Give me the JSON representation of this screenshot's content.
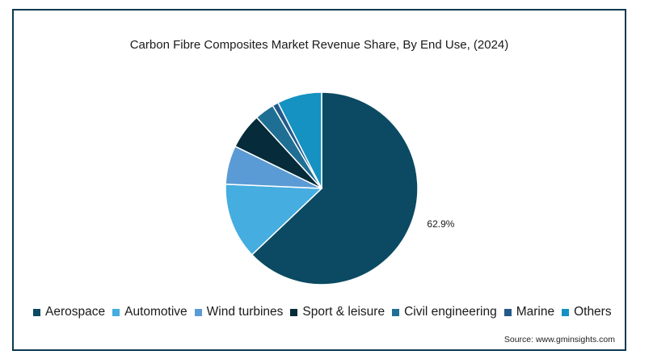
{
  "chart_data": {
    "type": "pie",
    "title": "Carbon Fibre Composites Market Revenue Share, By End Use, (2024)",
    "categories": [
      "Aerospace",
      "Automotive",
      "Wind turbines",
      "Sport & leisure",
      "Civil engineering",
      "Marine",
      "Others"
    ],
    "values": [
      62.9,
      12.8,
      6.5,
      6.0,
      3.3,
      1.0,
      7.5
    ],
    "colors": [
      "#0b4a62",
      "#45ade0",
      "#5b9bd5",
      "#062b3a",
      "#1f6f94",
      "#235a8a",
      "#1592c2"
    ],
    "data_labels": {
      "Aerospace": "62.9%"
    },
    "legend_position": "bottom",
    "source": "Source: www.gminsights.com"
  }
}
